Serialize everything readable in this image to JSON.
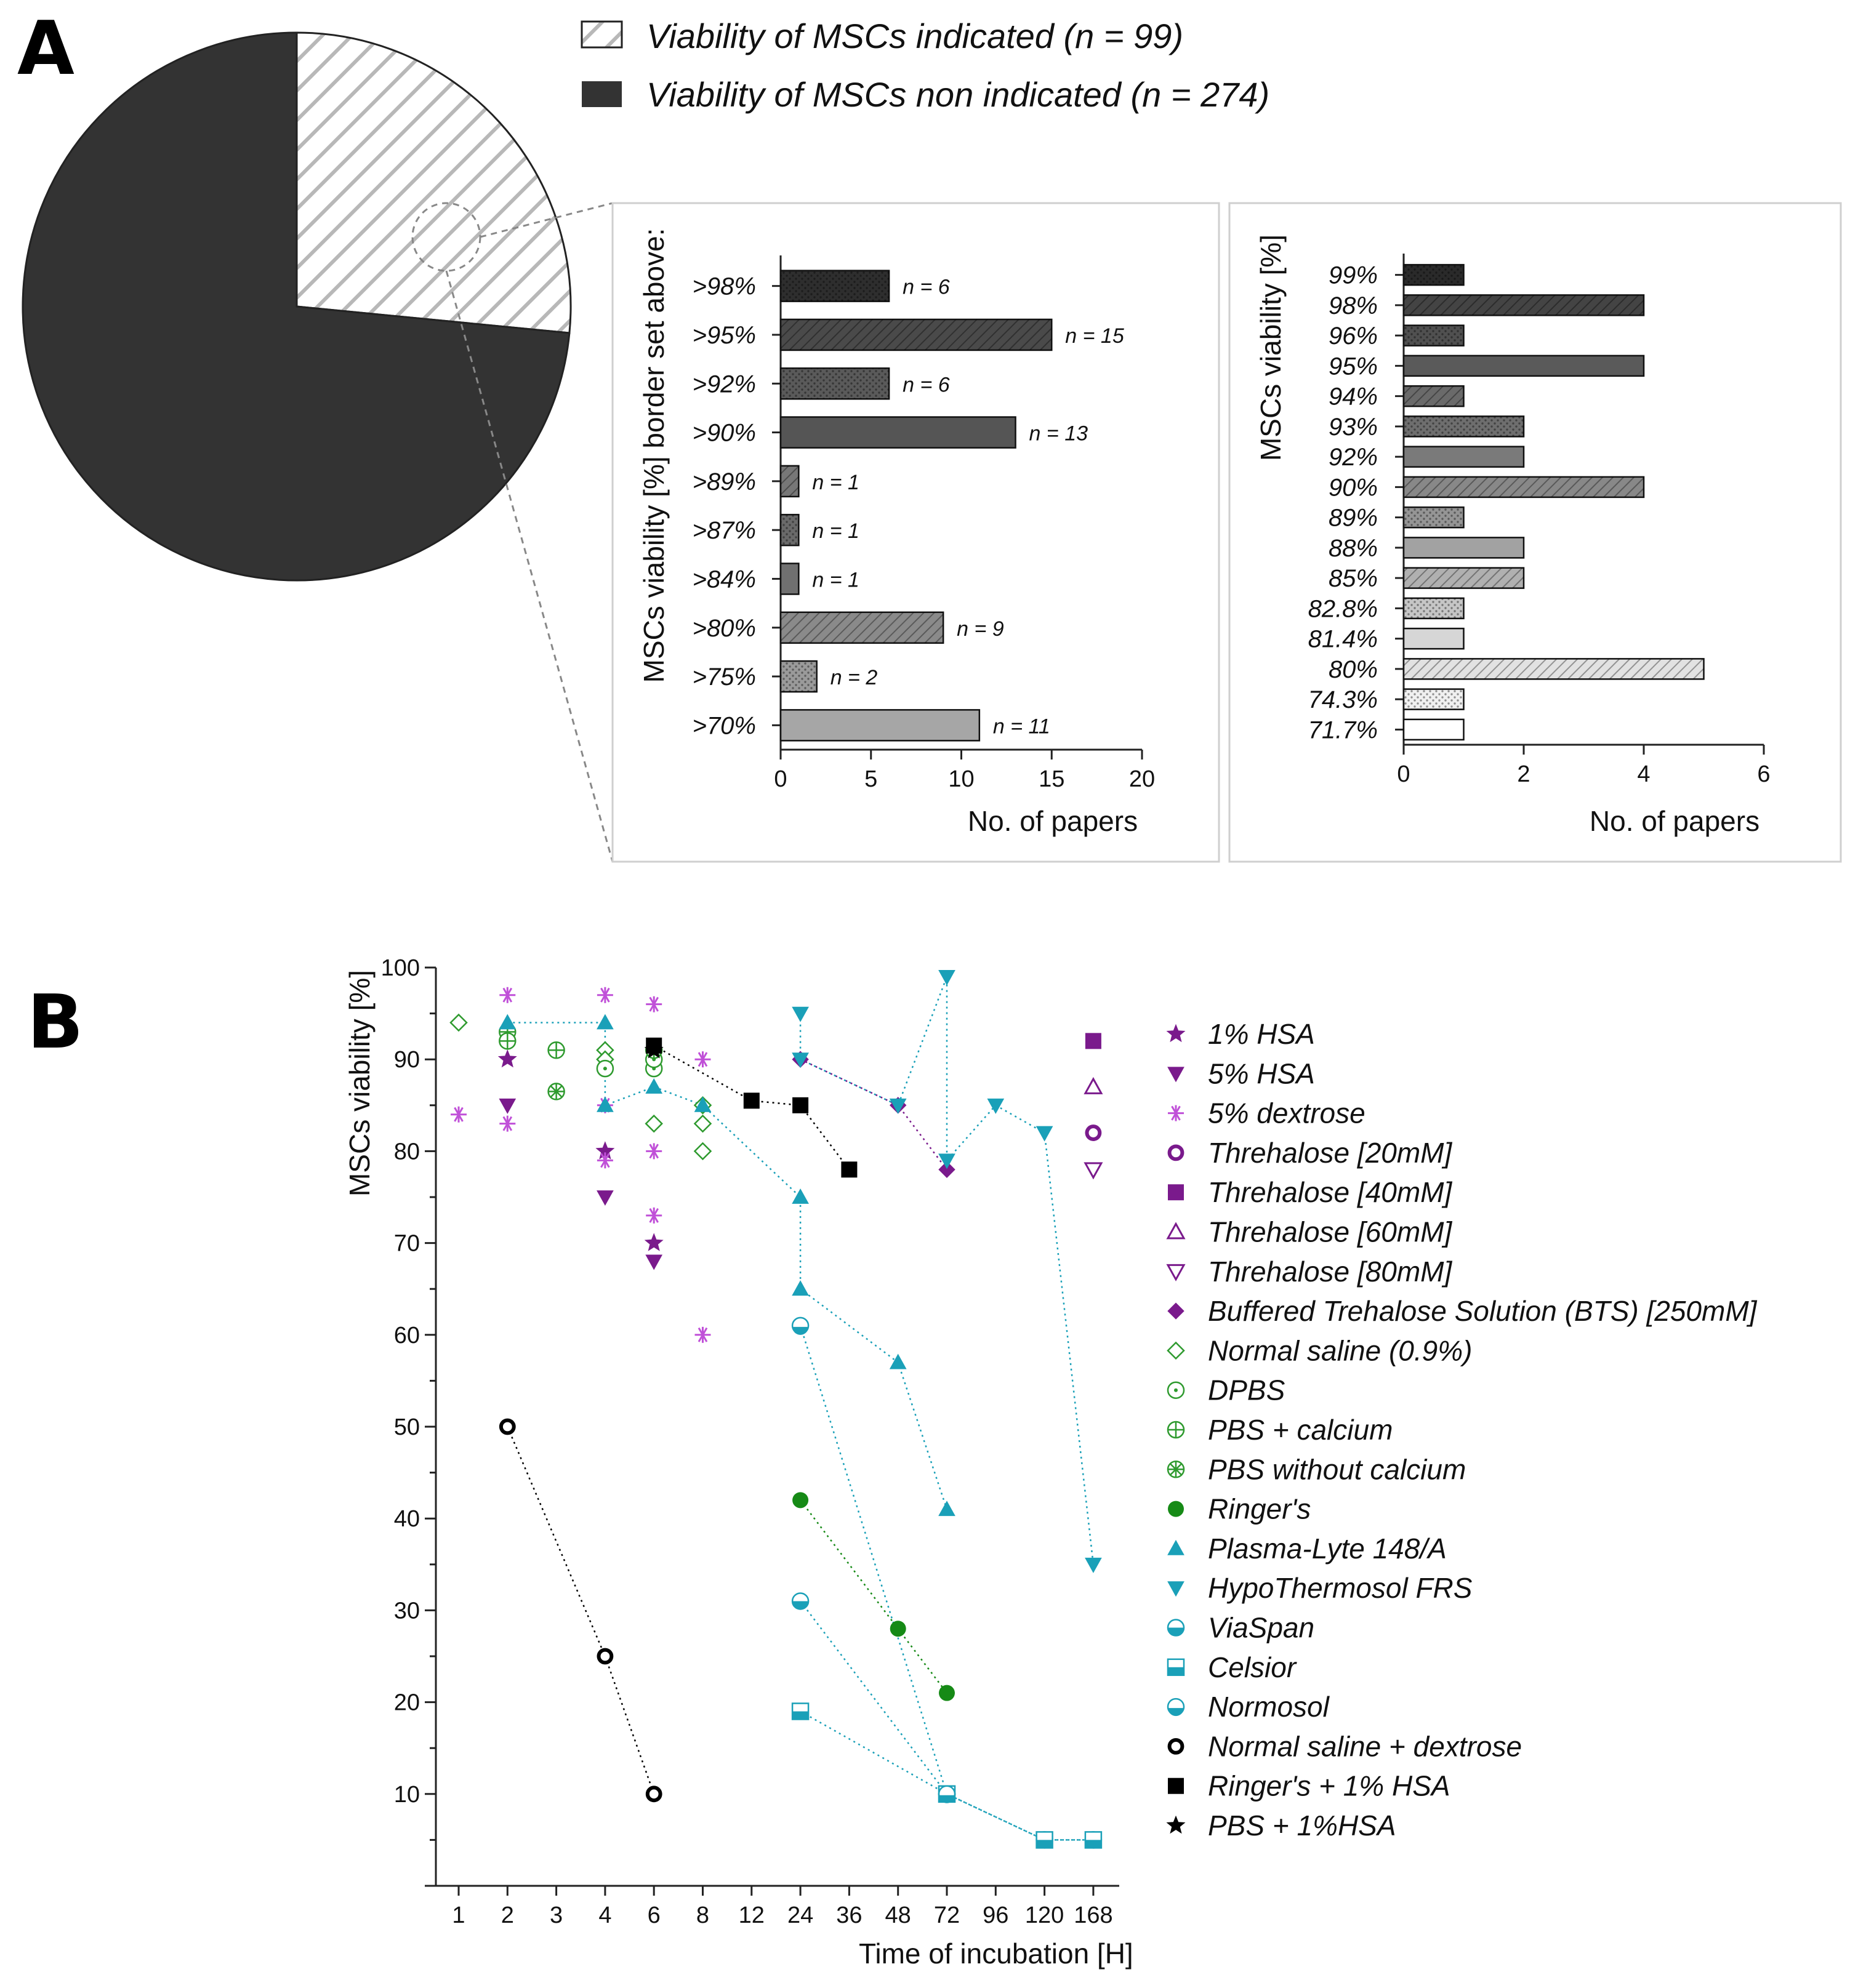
{
  "panel_labels": {
    "a": "A",
    "b": "B"
  },
  "colors": {
    "pie_dark": "#333333",
    "purple": "#7a1a8c",
    "magenta": "#c050d8",
    "green": "#2e9a2e",
    "dark_green": "#168a16",
    "teal": "#1aa0b8",
    "black": "#000000"
  },
  "chart_data": [
    {
      "id": "pie",
      "type": "pie",
      "legend": [
        {
          "label": "Viability of MSCs indicated (n = 99)",
          "pattern": "hatch"
        },
        {
          "label": "Viability of MSCs non indicated (n = 274)",
          "pattern": "solid-dark"
        }
      ],
      "slices": [
        {
          "label": "Viability of MSCs indicated",
          "value": 99
        },
        {
          "label": "Viability of MSCs non indicated",
          "value": 274
        }
      ]
    },
    {
      "id": "bar-threshold",
      "type": "bar",
      "orientation": "horizontal",
      "ylabel": "MSCs viability [%] border set above:",
      "xlabel": "No. of papers",
      "xlim": [
        0,
        20
      ],
      "xticks": [
        "0",
        "5",
        "10",
        "15",
        "20"
      ],
      "categories": [
        ">98%",
        ">95%",
        ">92%",
        ">90%",
        ">89%",
        ">87%",
        ">84%",
        ">80%",
        ">75%",
        ">70%"
      ],
      "values": [
        6,
        15,
        6,
        13,
        1,
        1,
        1,
        9,
        2,
        11
      ],
      "annotations": [
        "n = 6",
        "n = 15",
        "n = 6",
        "n = 13",
        "n = 1",
        "n = 1",
        "n = 1",
        "n = 9",
        "n = 2",
        "n = 11"
      ],
      "fills": [
        "#2e2e2e",
        "#4a4a4a",
        "#5a5a5a",
        "#555555",
        "#777777",
        "#6a6a6a",
        "#707070",
        "#8a8a8a",
        "#9a9a9a",
        "#a6a6a6"
      ],
      "patterns": [
        "dots",
        "diag",
        "dots",
        "solid",
        "diag",
        "dots",
        "solid",
        "diag",
        "dots",
        "solid"
      ]
    },
    {
      "id": "bar-exact",
      "type": "bar",
      "orientation": "horizontal",
      "ylabel": "MSCs viability [%]",
      "xlabel": "No. of papers",
      "xlim": [
        0,
        6
      ],
      "xticks": [
        "0",
        "2",
        "4",
        "6"
      ],
      "categories": [
        "99%",
        "98%",
        "96%",
        "95%",
        "94%",
        "93%",
        "92%",
        "90%",
        "89%",
        "88%",
        "85%",
        "82.8%",
        "81.4%",
        "80%",
        "74.3%",
        "71.7%"
      ],
      "values": [
        1,
        4,
        1,
        4,
        1,
        2,
        2,
        4,
        1,
        2,
        2,
        1,
        1,
        5,
        1,
        1
      ],
      "fills": [
        "#2a2a2a",
        "#444444",
        "#505050",
        "#5a5a5a",
        "#6a6a6a",
        "#6e6e6e",
        "#7a7a7a",
        "#888888",
        "#959595",
        "#a2a2a2",
        "#b0b0b0",
        "#c6c6c6",
        "#d6d6d6",
        "#e2e2e2",
        "#f0f0f0",
        "#ffffff"
      ],
      "patterns": [
        "dots",
        "diag",
        "dots",
        "solid",
        "diag",
        "dots",
        "solid",
        "diag",
        "dots",
        "solid",
        "diag",
        "dots",
        "solid",
        "diag",
        "dots",
        "solid"
      ]
    },
    {
      "id": "scatter-incubation",
      "type": "scatter",
      "ylabel": "MSCs viability [%]",
      "xlabel": "Time of incubation [H]",
      "ylim": [
        0,
        100
      ],
      "yticks": [
        10,
        20,
        30,
        40,
        50,
        60,
        70,
        80,
        90,
        100
      ],
      "categories": [
        "1",
        "2",
        "3",
        "4",
        "6",
        "8",
        "12",
        "24",
        "36",
        "48",
        "72",
        "96",
        "120",
        "168"
      ],
      "series": [
        {
          "name": "1% HSA",
          "color": "#7a1a8c",
          "marker": "star",
          "filled": true,
          "line": false,
          "points": [
            [
              2,
              90
            ],
            [
              4,
              80
            ],
            [
              6,
              70
            ]
          ]
        },
        {
          "name": "5% HSA",
          "color": "#7a1a8c",
          "marker": "tri-down",
          "filled": true,
          "line": false,
          "points": [
            [
              2,
              85
            ],
            [
              4,
              75
            ],
            [
              6,
              68
            ]
          ]
        },
        {
          "name": "5% dextrose",
          "color": "#c050d8",
          "marker": "asterisk",
          "filled": false,
          "line": false,
          "points": [
            [
              1,
              84
            ],
            [
              2,
              97
            ],
            [
              2,
              92
            ],
            [
              2,
              83
            ],
            [
              4,
              97
            ],
            [
              4,
              85
            ],
            [
              4,
              79
            ],
            [
              6,
              96
            ],
            [
              6,
              80
            ],
            [
              6,
              73
            ],
            [
              8,
              90
            ],
            [
              8,
              60
            ]
          ]
        },
        {
          "name": "Threhalose [20mM]",
          "color": "#7a1a8c",
          "marker": "ring",
          "filled": false,
          "line": false,
          "points": [
            [
              168,
              82
            ]
          ]
        },
        {
          "name": "Threhalose [40mM]",
          "color": "#7a1a8c",
          "marker": "square",
          "filled": true,
          "line": false,
          "points": [
            [
              168,
              92
            ]
          ]
        },
        {
          "name": "Threhalose [60mM]",
          "color": "#7a1a8c",
          "marker": "tri-up",
          "filled": false,
          "line": false,
          "points": [
            [
              168,
              87
            ]
          ]
        },
        {
          "name": "Threhalose [80mM]",
          "color": "#7a1a8c",
          "marker": "tri-down",
          "filled": false,
          "line": false,
          "points": [
            [
              168,
              78
            ]
          ]
        },
        {
          "name": "Buffered Trehalose Solution (BTS) [250mM]",
          "color": "#7a1a8c",
          "marker": "diamond",
          "filled": true,
          "line": true,
          "points": [
            [
              24,
              90
            ],
            [
              48,
              85
            ],
            [
              72,
              78
            ]
          ]
        },
        {
          "name": "Normal saline (0.9%)",
          "color": "#2e9a2e",
          "marker": "diamond",
          "filled": false,
          "line": false,
          "points": [
            [
              1,
              94
            ],
            [
              4,
              91
            ],
            [
              4,
              90
            ],
            [
              6,
              83
            ],
            [
              8,
              85
            ],
            [
              8,
              83
            ],
            [
              8,
              80
            ]
          ]
        },
        {
          "name": "DPBS",
          "color": "#2e9a2e",
          "marker": "circle-dot",
          "filled": false,
          "line": false,
          "points": [
            [
              4,
              89
            ],
            [
              6,
              89
            ],
            [
              6,
              90
            ]
          ]
        },
        {
          "name": "PBS + calcium",
          "color": "#2e9a2e",
          "marker": "circle-plus",
          "filled": false,
          "line": false,
          "points": [
            [
              2,
              93
            ],
            [
              3,
              91
            ],
            [
              2,
              92
            ]
          ]
        },
        {
          "name": "PBS without calcium",
          "color": "#2e9a2e",
          "marker": "circle-x",
          "filled": false,
          "line": false,
          "points": [
            [
              3,
              86.5
            ],
            [
              6,
              91
            ]
          ]
        },
        {
          "name": "Ringer's",
          "color": "#168a16",
          "marker": "circle",
          "filled": true,
          "line": true,
          "points": [
            [
              24,
              42
            ],
            [
              48,
              28
            ],
            [
              72,
              21
            ]
          ]
        },
        {
          "name": "Plasma-Lyte 148/A",
          "color": "#1aa0b8",
          "marker": "tri-up",
          "filled": true,
          "line": true,
          "points": [
            [
              2,
              94
            ],
            [
              4,
              94
            ],
            [
              4,
              85
            ],
            [
              6,
              87
            ],
            [
              8,
              85
            ],
            [
              24,
              75
            ],
            [
              24,
              65
            ],
            [
              48,
              57
            ],
            [
              72,
              41
            ]
          ]
        },
        {
          "name": "HypoThermosol FRS",
          "color": "#1aa0b8",
          "marker": "tri-down",
          "filled": true,
          "line": true,
          "points": [
            [
              24,
              95
            ],
            [
              24,
              90
            ],
            [
              48,
              85
            ],
            [
              72,
              99
            ],
            [
              72,
              79
            ],
            [
              96,
              85
            ],
            [
              120,
              82
            ],
            [
              168,
              35
            ]
          ]
        },
        {
          "name": "ViaSpan",
          "color": "#1aa0b8",
          "marker": "half-circle",
          "filled": true,
          "line": true,
          "points": [
            [
              24,
              31
            ],
            [
              72,
              10
            ],
            [
              120,
              5
            ],
            [
              168,
              5
            ]
          ]
        },
        {
          "name": "Celsior",
          "color": "#1aa0b8",
          "marker": "half-square",
          "filled": true,
          "line": true,
          "points": [
            [
              24,
              19
            ],
            [
              72,
              10
            ],
            [
              120,
              5
            ],
            [
              168,
              5
            ]
          ]
        },
        {
          "name": "Normosol",
          "color": "#1aa0b8",
          "marker": "half-circle-h",
          "filled": true,
          "line": true,
          "points": [
            [
              24,
              61
            ],
            [
              72,
              10
            ]
          ]
        },
        {
          "name": "Normal saline + dextrose",
          "color": "#000000",
          "marker": "ring",
          "filled": false,
          "line": true,
          "points": [
            [
              2,
              50
            ],
            [
              4,
              25
            ],
            [
              6,
              10
            ]
          ]
        },
        {
          "name": "Ringer's + 1% HSA",
          "color": "#000000",
          "marker": "square",
          "filled": true,
          "line": true,
          "points": [
            [
              6,
              91.5
            ],
            [
              12,
              85.5
            ],
            [
              24,
              85
            ],
            [
              36,
              78
            ]
          ]
        },
        {
          "name": "PBS + 1%HSA",
          "color": "#000000",
          "marker": "star",
          "filled": true,
          "line": false,
          "points": [
            [
              6,
              91
            ]
          ]
        }
      ]
    }
  ]
}
